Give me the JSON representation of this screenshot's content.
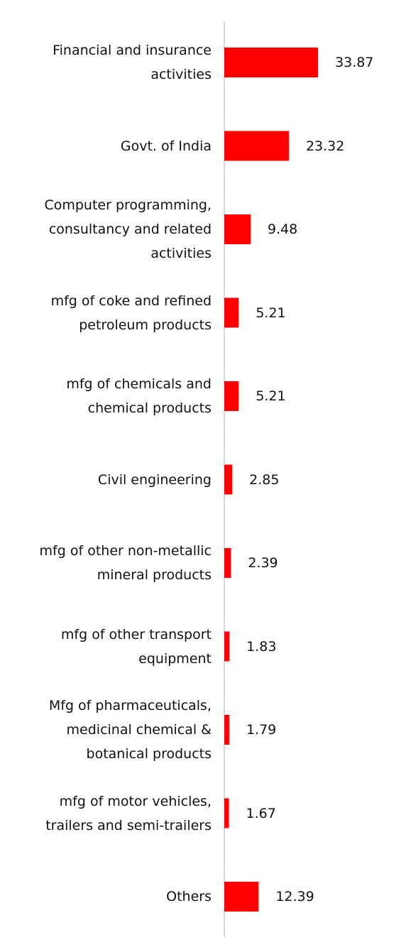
{
  "chart_data": {
    "type": "bar",
    "orientation": "horizontal",
    "color": "#ff0000",
    "categories": [
      "Financial and insurance activities",
      "Govt. of India",
      "Computer programming, consultancy and related activities",
      "mfg of coke and refined petroleum products",
      "mfg of chemicals and chemical products",
      "Civil engineering",
      "mfg of other non-metallic mineral products",
      "mfg of other transport equipment",
      "Mfg of pharmaceuticals, medicinal chemical & botanical products",
      "mfg of motor vehicles, trailers and semi-trailers",
      "Others"
    ],
    "values": [
      33.87,
      23.32,
      9.48,
      5.21,
      5.21,
      2.85,
      2.39,
      1.83,
      1.79,
      1.67,
      12.39
    ]
  }
}
